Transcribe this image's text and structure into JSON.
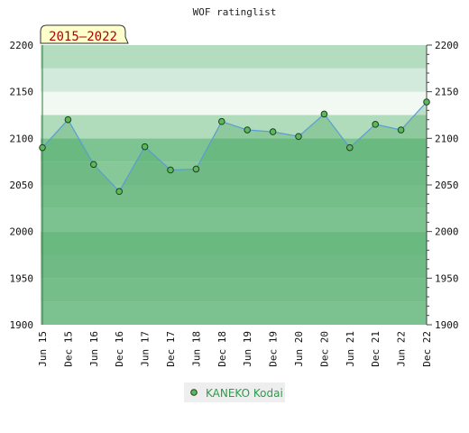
{
  "chart_data": {
    "type": "area",
    "title": "WOF ratinglist",
    "period_label": "2015–2022",
    "categories": [
      "Jun 15",
      "Dec 15",
      "Jun 16",
      "Dec 16",
      "Jun 17",
      "Dec 17",
      "Jun 18",
      "Dec 18",
      "Jun 19",
      "Dec 19",
      "Jun 20",
      "Dec 20",
      "Jun 21",
      "Dec 21",
      "Jun 22",
      "Dec 22"
    ],
    "series": [
      {
        "name": "KANEKO Kodai",
        "values": [
          2090,
          2120,
          2072,
          2043,
          2091,
          2066,
          2067,
          2118,
          2109,
          2107,
          2102,
          2126,
          2090,
          2115,
          2109,
          2139
        ]
      }
    ],
    "ylim": [
      1900,
      2200
    ],
    "yticks": [
      1900,
      1950,
      2000,
      2050,
      2100,
      2150,
      2200
    ],
    "axis_sides": "left-and-right",
    "grid": true,
    "legend": "bottom-center",
    "colors": {
      "line": "#5b9bd5",
      "marker": "#5cb85c",
      "marker_stroke": "#1f3f1f",
      "fill": "rgba(60,160,90,0.30)",
      "badge_bg": "#ffffcc",
      "badge_text": "#b00000",
      "legend_text": "#2e9a4a",
      "legend_bg": "#eeeeee"
    },
    "bands": [
      {
        "from": 1900,
        "to": 1925,
        "color": "#98d0a8"
      },
      {
        "from": 1925,
        "to": 1950,
        "color": "#8fcc9f"
      },
      {
        "from": 1950,
        "to": 1975,
        "color": "#87c898"
      },
      {
        "from": 1975,
        "to": 2000,
        "color": "#7dc492"
      },
      {
        "from": 2000,
        "to": 2025,
        "color": "#98d0a8"
      },
      {
        "from": 2025,
        "to": 2050,
        "color": "#8fcc9f"
      },
      {
        "from": 2050,
        "to": 2075,
        "color": "#87c898"
      },
      {
        "from": 2075,
        "to": 2100,
        "color": "#7dc492"
      },
      {
        "from": 2100,
        "to": 2125,
        "color": "#b1dcbb"
      },
      {
        "from": 2125,
        "to": 2150,
        "color": "#f2f9f3"
      },
      {
        "from": 2150,
        "to": 2175,
        "color": "#d1eadb"
      },
      {
        "from": 2175,
        "to": 2200,
        "color": "#b4ddbf"
      }
    ]
  }
}
